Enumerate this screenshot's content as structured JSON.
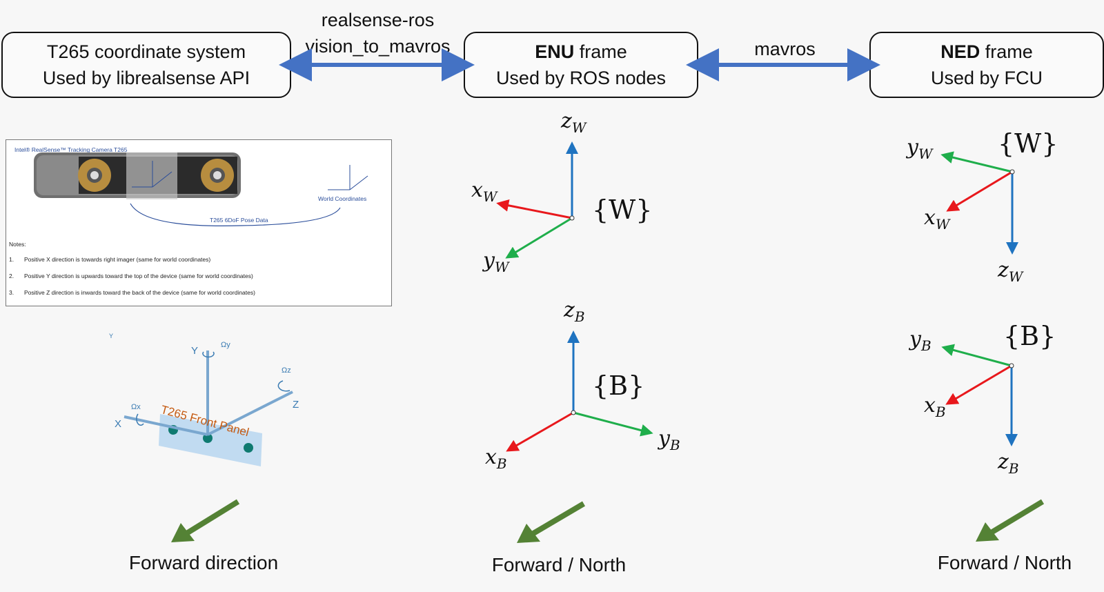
{
  "boxes": {
    "t265": {
      "line1": "T265 coordinate system",
      "line2": "Used by librealsense API"
    },
    "enu": {
      "bold": "ENU",
      "rest": " frame",
      "line2": "Used by ROS nodes"
    },
    "ned": {
      "bold": "NED",
      "rest": " frame",
      "line2": "Used by FCU"
    }
  },
  "links": {
    "left": {
      "line1": "realsense-ros",
      "line2": "vision_to_mavros"
    },
    "right": {
      "label": "mavros"
    }
  },
  "doc": {
    "header": "Intel® RealSense™ Tracking Camera T265",
    "world_label": "World Coordinates",
    "pose_label": "T265 6DoF Pose Data",
    "notes_title": "Notes:",
    "notes": [
      "Positive X direction is towards right imager (same for world coordinates)",
      "Positive Y direction is upwards toward the top of the device (same for world coordinates)",
      "Positive Z direction is inwards toward the back of the device (same for world coordinates)"
    ]
  },
  "t265_3d": {
    "panel": "T265 Front Panel",
    "x": "X",
    "y": "Y",
    "z": "Z",
    "wx": "Ωx",
    "wy": "Ωy",
    "wz": "Ωz",
    "ylabel_small": "Y"
  },
  "enu_world": {
    "frame": "{W}",
    "z": "z",
    "x": "x",
    "y": "y",
    "sub": "W"
  },
  "enu_body": {
    "frame": "{B}",
    "z": "z",
    "x": "x",
    "y": "y",
    "sub": "B"
  },
  "ned_world": {
    "frame": "{W}",
    "z": "z",
    "x": "x",
    "y": "y",
    "sub": "W"
  },
  "ned_body": {
    "frame": "{B}",
    "z": "z",
    "x": "x",
    "y": "y",
    "sub": "B"
  },
  "captions": {
    "left": "Forward direction",
    "middle": "Forward / North",
    "right": "Forward / North"
  },
  "colors": {
    "x_axis": "#e8181c",
    "y_axis": "#1fae4b",
    "z_axis": "#1f73c0",
    "link_arrow": "#4472c4",
    "forward_arrow": "#548235"
  }
}
